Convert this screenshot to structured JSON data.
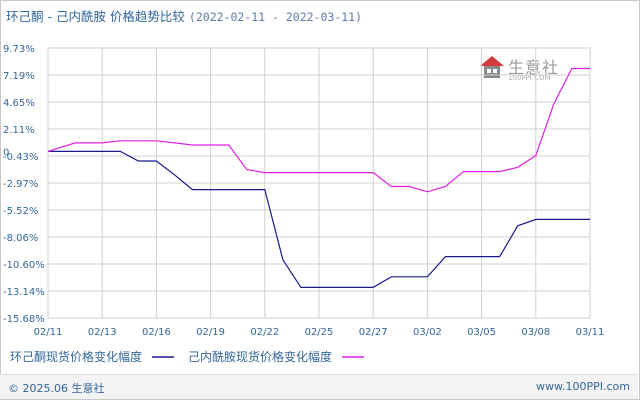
{
  "header": {
    "title": "环己酮 - 己内酰胺 价格趋势比较",
    "date_range": "(2022-02-11 - 2022-03-11)"
  },
  "watermark": {
    "text": "生意社",
    "url": "100PPI.COM",
    "icon": "house-logo-icon"
  },
  "footer": {
    "copyright": "© 2025.06 生意社",
    "url": "www.100PPI.com"
  },
  "colors": {
    "series1": "#1a1a8c",
    "series2": "#e020e0",
    "grid": "#d0d0d0",
    "axis_text": "#336699"
  },
  "chart_data": {
    "type": "line",
    "title": "环己酮 - 己内酰胺 价格趋势比较",
    "x_tick_labels": [
      "02/11",
      "02/13",
      "02/16",
      "02/19",
      "02/22",
      "02/25",
      "02/27",
      "03/02",
      "03/05",
      "03/08",
      "03/11"
    ],
    "y_tick_labels": [
      "9.73%",
      "7.19%",
      "4.65%",
      "2.11%",
      "-0.43%",
      "-2.97%",
      "-5.52%",
      "-8.06%",
      "-10.60%",
      "-13.14%",
      "-15.68%"
    ],
    "zero_label": "0",
    "ylim": [
      -15.68,
      9.73
    ],
    "grid": true,
    "legend_position": "bottom-left",
    "series": [
      {
        "name": "环己酮现货价格变化幅度",
        "x": [
          "02/11",
          "02/12",
          "02/13",
          "02/14",
          "02/15",
          "02/16",
          "02/17",
          "02/18",
          "02/19",
          "02/20",
          "02/21",
          "02/22",
          "02/23",
          "02/24",
          "02/25",
          "02/26",
          "02/27",
          "02/28",
          "03/01",
          "03/02",
          "03/03",
          "03/04",
          "03/05",
          "03/06",
          "03/07",
          "03/08",
          "03/09",
          "03/10",
          "03/11"
        ],
        "values": [
          0,
          0,
          0,
          0,
          -0.9,
          -0.9,
          -2.2,
          -3.6,
          -3.6,
          -3.6,
          -3.6,
          -3.6,
          -10.2,
          -12.8,
          -12.8,
          -12.8,
          -12.8,
          -11.8,
          -11.8,
          -11.8,
          -9.9,
          -9.9,
          -9.9,
          -9.9,
          -7.0,
          -6.4,
          -6.4,
          -6.4,
          -6.4
        ]
      },
      {
        "name": "己内酰胺现货价格变化幅度",
        "x": [
          "02/11",
          "02/12",
          "02/13",
          "02/14",
          "02/15",
          "02/16",
          "02/17",
          "02/18",
          "02/19",
          "02/20",
          "02/21",
          "02/22",
          "02/23",
          "02/24",
          "02/25",
          "02/26",
          "02/27",
          "02/28",
          "03/01",
          "03/02",
          "03/03",
          "03/04",
          "03/05",
          "03/06",
          "03/07",
          "03/08",
          "03/09",
          "03/10",
          "03/11"
        ],
        "values": [
          0,
          0.8,
          0.8,
          1.0,
          1.0,
          1.0,
          0.8,
          0.6,
          0.6,
          0.6,
          -1.7,
          -2.0,
          -2.0,
          -2.0,
          -2.0,
          -2.0,
          -2.0,
          -3.3,
          -3.3,
          -3.8,
          -3.3,
          -1.9,
          -1.9,
          -1.9,
          -1.5,
          -0.4,
          4.5,
          7.8,
          7.8
        ]
      }
    ]
  }
}
